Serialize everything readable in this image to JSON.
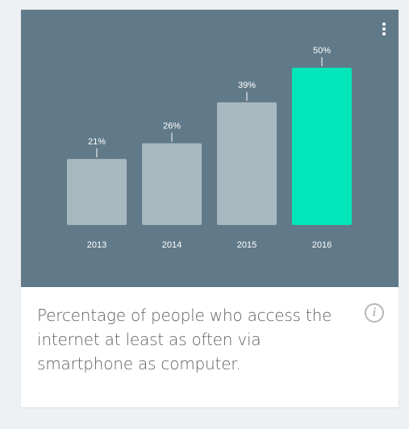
{
  "chart_data": {
    "type": "bar",
    "categories": [
      "2013",
      "2014",
      "2015",
      "2016"
    ],
    "values": [
      21,
      26,
      39,
      50
    ],
    "value_labels": [
      "21%",
      "26%",
      "39%",
      "50%"
    ],
    "highlight_index": 3,
    "ylim": [
      0,
      50
    ],
    "grid": false,
    "colors": {
      "background": "#617a89",
      "bar": "#a8b8bf",
      "highlight": "#03e6b9"
    }
  },
  "caption": "Percentage of people who access the internet at least as often via smartphone as computer.",
  "icons": {
    "menu": "more-vert-icon",
    "info": "info-icon"
  },
  "info_glyph": "i"
}
